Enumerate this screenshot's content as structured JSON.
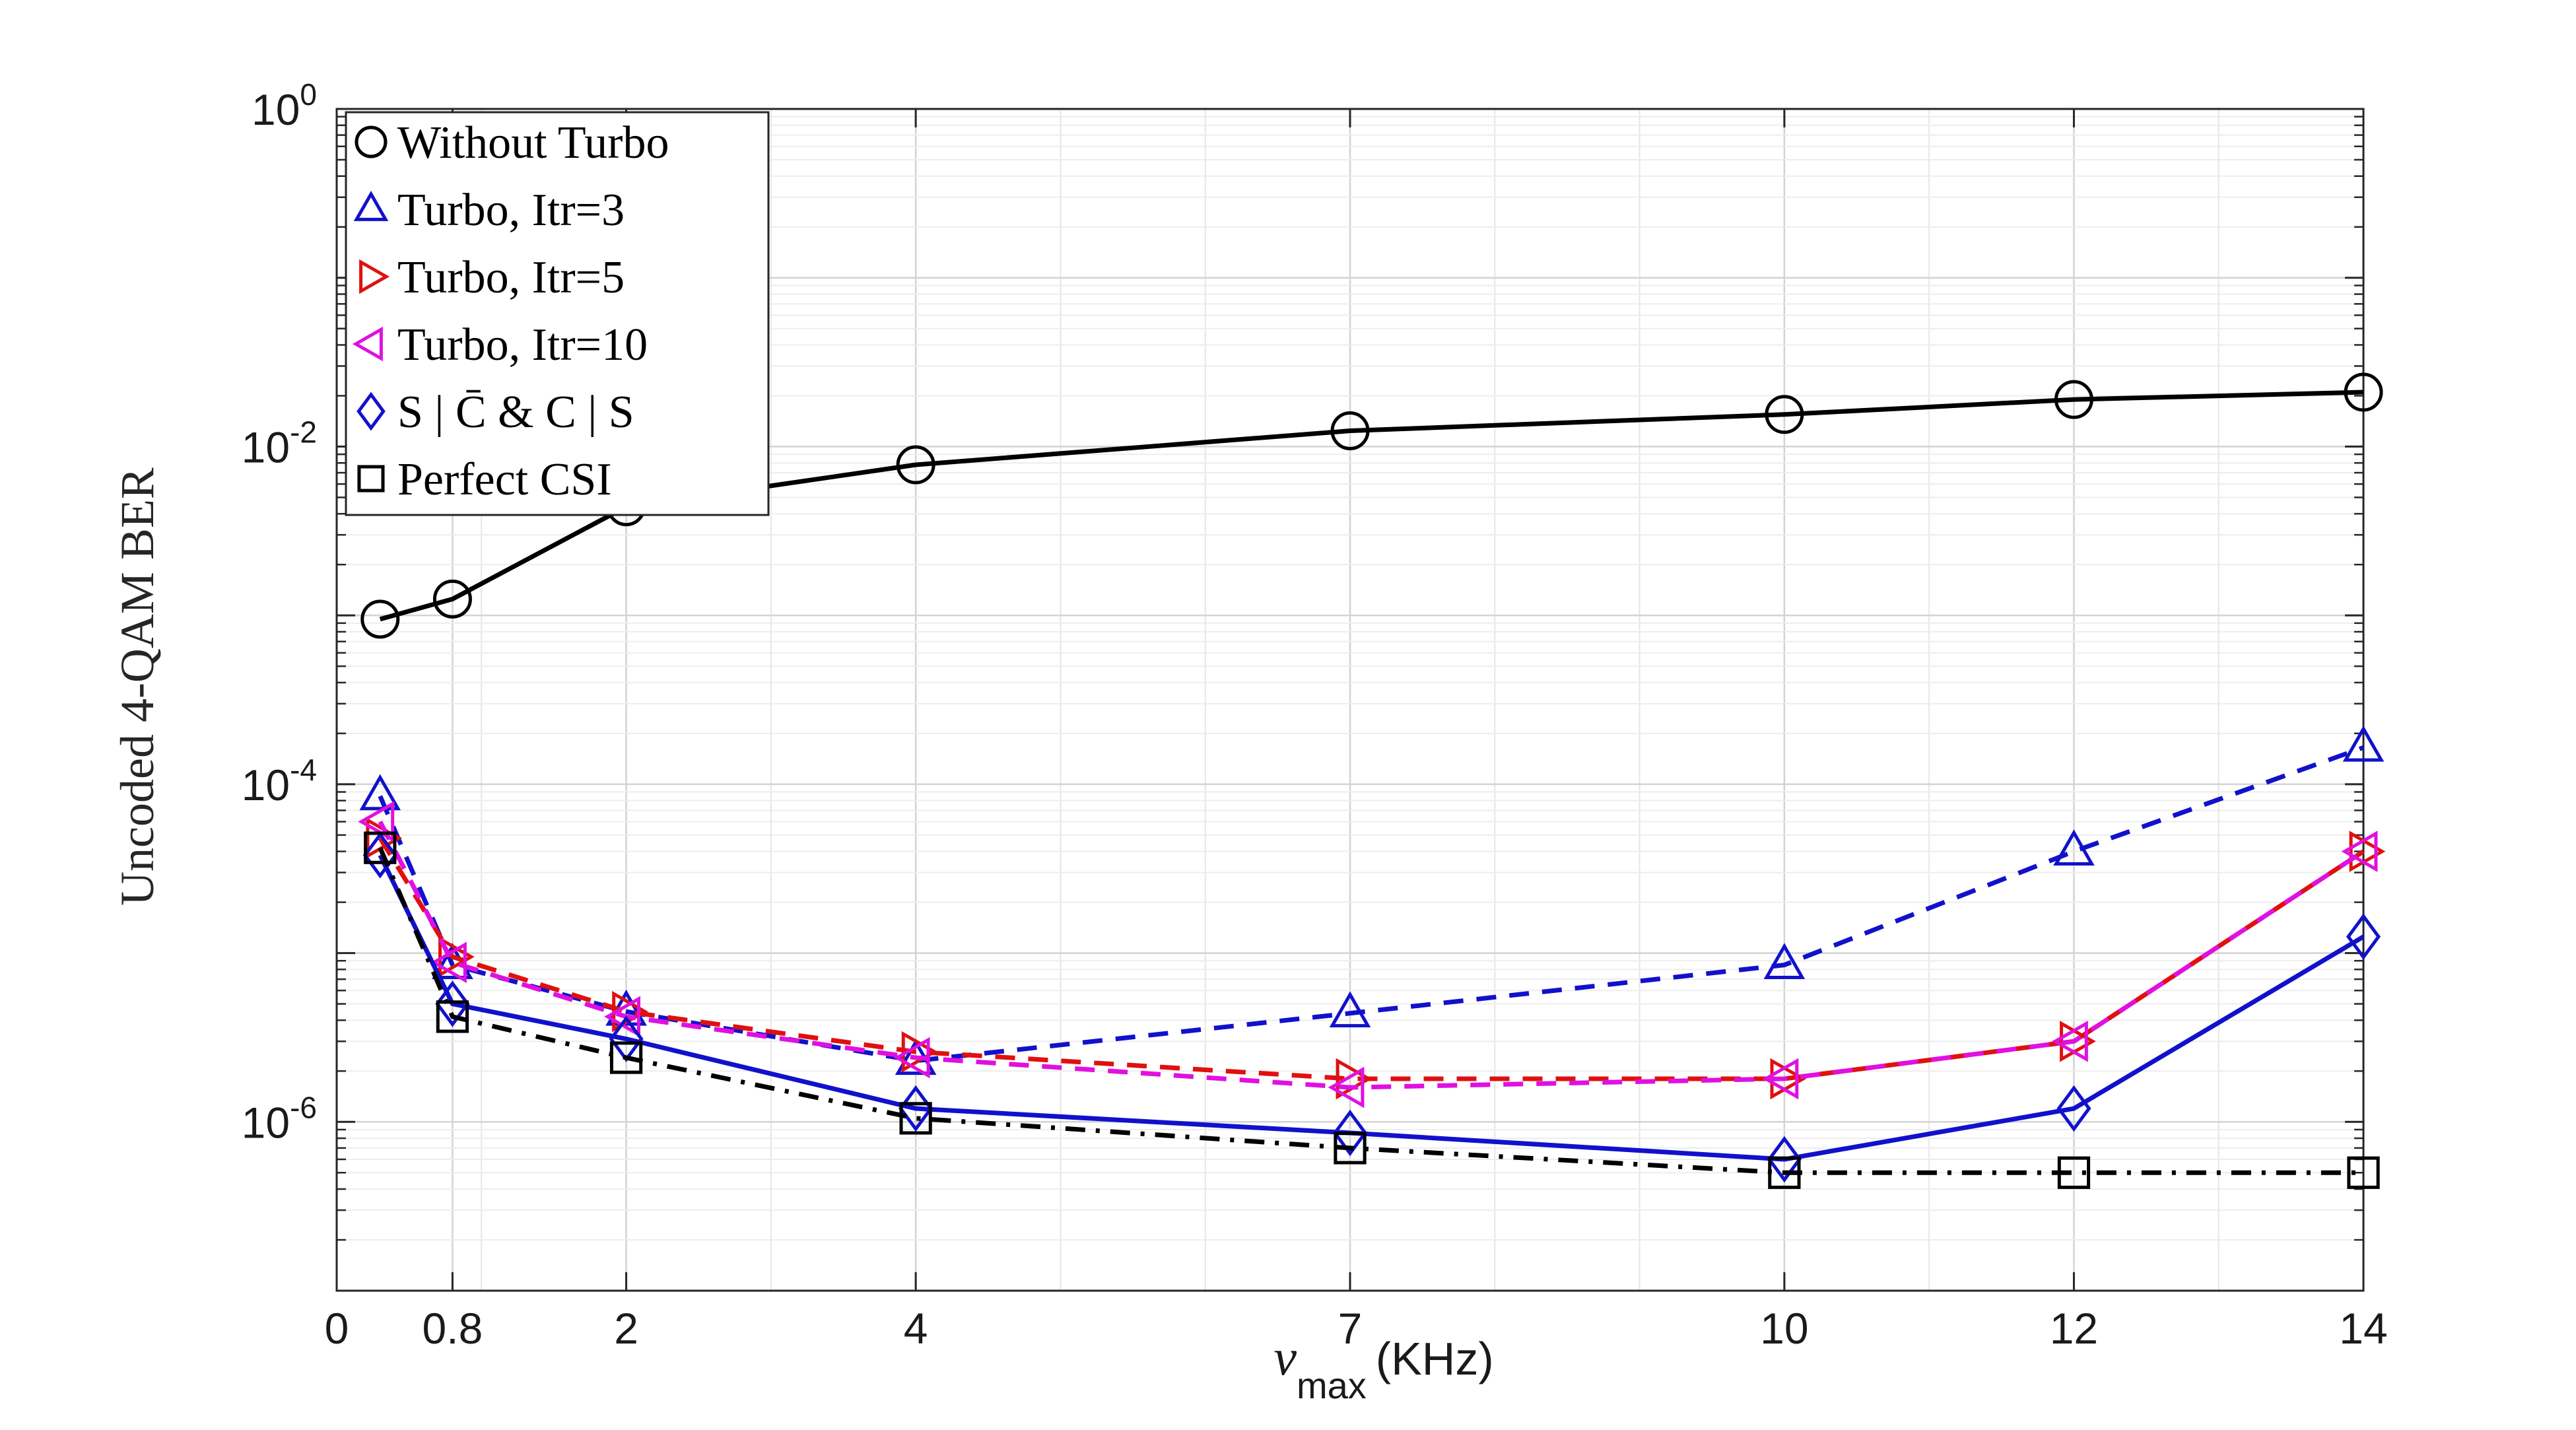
{
  "chart_data": {
    "type": "line",
    "title": "",
    "xlabel": "ν",
    "xlabel_subscript": "max",
    "xlabel_unit": "(KHz)",
    "ylabel": "Uncoded 4-QAM BER",
    "xlim": [
      0,
      14
    ],
    "ylim": [
      1e-07,
      1
    ],
    "yscale": "log",
    "grid": true,
    "legend_position": "top-left",
    "x_ticks": [
      {
        "value": 0,
        "label": "0"
      },
      {
        "value": 0.8,
        "label": "0.8"
      },
      {
        "value": 2,
        "label": "2"
      },
      {
        "value": 4,
        "label": "4"
      },
      {
        "value": 7,
        "label": "7"
      },
      {
        "value": 10,
        "label": "10"
      },
      {
        "value": 12,
        "label": "12"
      },
      {
        "value": 14,
        "label": "14"
      }
    ],
    "y_ticks": [
      {
        "value": 1,
        "base": "10",
        "exp": "0"
      },
      {
        "value": 0.01,
        "base": "10",
        "exp": "-2"
      },
      {
        "value": 0.0001,
        "base": "10",
        "exp": "-4"
      },
      {
        "value": 1e-06,
        "base": "10",
        "exp": "-6"
      }
    ],
    "x": [
      0.3,
      0.8,
      2,
      4,
      7,
      10,
      12,
      14
    ],
    "series": [
      {
        "name": "Without Turbo",
        "color": "#000000",
        "dash": "solid",
        "marker": "circle",
        "x": [
          0.3,
          0.8,
          2,
          4,
          7,
          10,
          12,
          14
        ],
        "values": [
          0.00095,
          0.00125,
          0.0044,
          0.0078,
          0.0124,
          0.0155,
          0.019,
          0.021
        ]
      },
      {
        "name": "Turbo, Itr=3",
        "color": "#1111cc",
        "dash": "dashed",
        "marker": "triangle-up",
        "x": [
          0.3,
          0.8,
          2,
          4,
          7,
          10,
          12,
          14
        ],
        "values": [
          8.5e-05,
          8.5e-06,
          4.5e-06,
          2.3e-06,
          4.4e-06,
          8.5e-06,
          4e-05,
          0.000165
        ]
      },
      {
        "name": "Turbo, Itr=5",
        "color": "#e01010",
        "dash": "dashed",
        "marker": "triangle-right",
        "x": [
          0.3,
          0.8,
          2,
          4,
          7,
          10,
          12,
          14
        ],
        "values": [
          4.8e-05,
          9.5e-06,
          4.5e-06,
          2.6e-06,
          1.8e-06,
          1.8e-06,
          3e-06,
          4e-05
        ]
      },
      {
        "name": "Turbo, Itr=10",
        "color": "#e010e0",
        "dash": "dashed",
        "marker": "triangle-left",
        "x": [
          0.3,
          0.8,
          2,
          4,
          7,
          10,
          12,
          14
        ],
        "values": [
          6e-05,
          8.8e-06,
          4.2e-06,
          2.4e-06,
          1.6e-06,
          1.8e-06,
          3e-06,
          4e-05
        ]
      },
      {
        "name": "S | C̄ & C | S",
        "color": "#1111cc",
        "dash": "solid",
        "marker": "diamond",
        "x": [
          0.3,
          0.8,
          2,
          4,
          7,
          10,
          12,
          14
        ],
        "values": [
          3.8e-05,
          5e-06,
          3.1e-06,
          1.2e-06,
          8.6e-07,
          6e-07,
          1.2e-06,
          1.25e-05
        ]
      },
      {
        "name": "Perfect CSI",
        "color": "#000000",
        "dash": "dashdot",
        "marker": "square",
        "x": [
          0.3,
          0.8,
          2,
          4,
          7,
          10,
          12,
          14
        ],
        "values": [
          4.2e-05,
          4.2e-06,
          2.4e-06,
          1.05e-06,
          7e-07,
          5e-07,
          5e-07,
          5e-07
        ]
      }
    ]
  }
}
